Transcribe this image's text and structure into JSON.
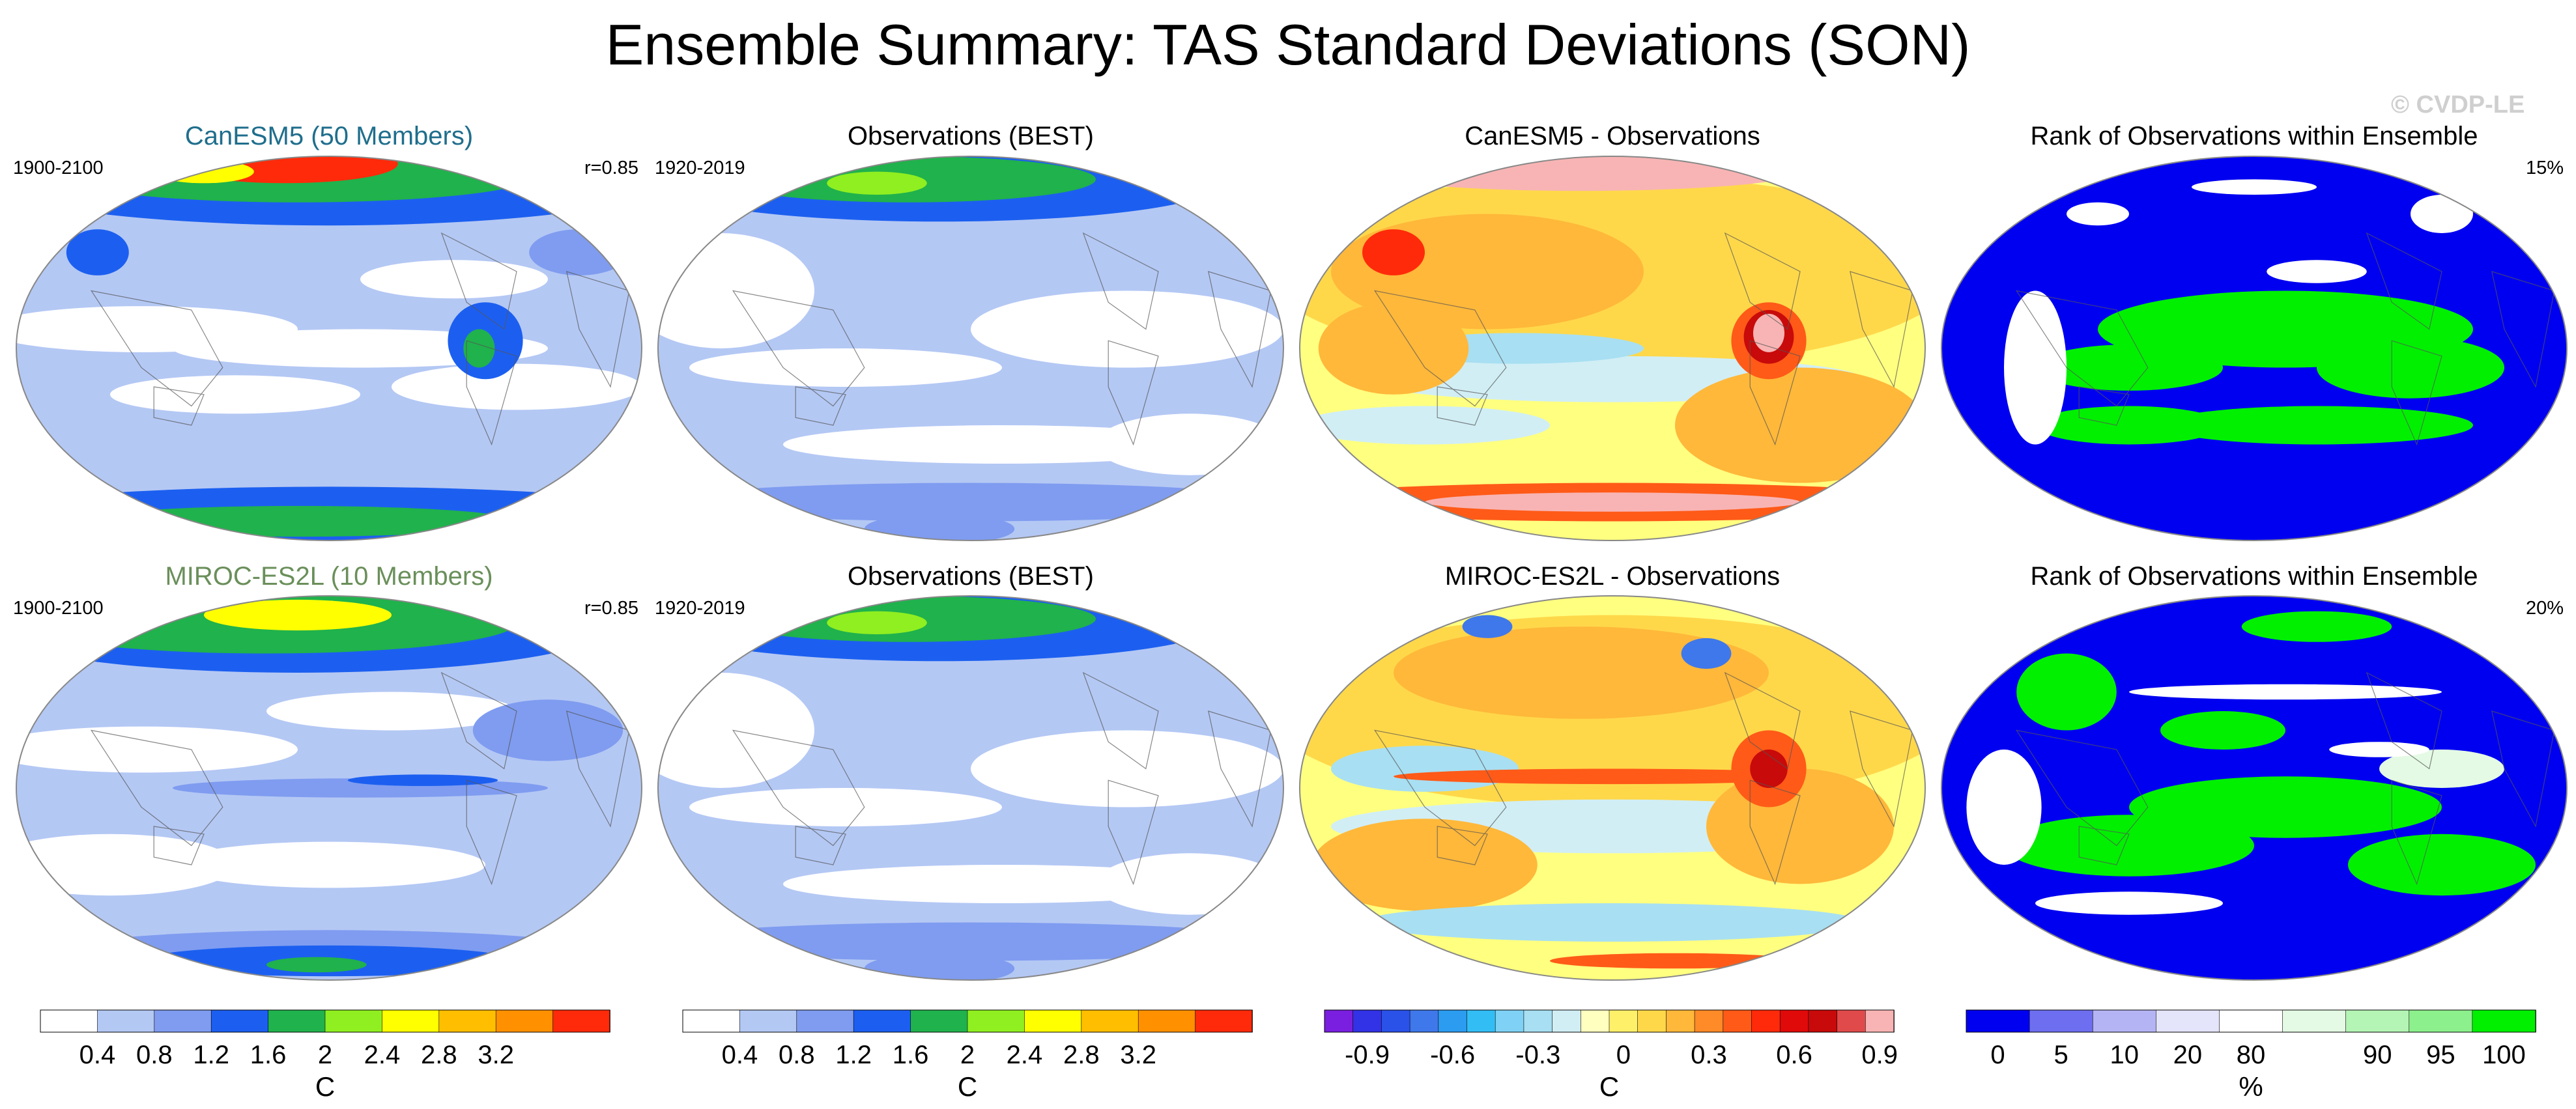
{
  "title": "Ensemble Summary: TAS Standard Deviations (SON)",
  "watermark": "© CVDP-LE",
  "chart_data": [
    {
      "type": "heatmap",
      "name": "panel-canesm5-mean",
      "title": "CanESM5 (50 Members)",
      "title_color": "#1f6e8c",
      "corner_left": "1900-2100",
      "corner_right": "r=0.85",
      "field": "TAS standard deviation",
      "units": "C",
      "regime": "model"
    },
    {
      "type": "heatmap",
      "name": "panel-obs-best-1",
      "title": "Observations (BEST)",
      "title_color": "#000000",
      "corner_left": "1920-2019",
      "corner_right": "",
      "field": "TAS standard deviation",
      "units": "C",
      "regime": "obs"
    },
    {
      "type": "heatmap",
      "name": "panel-canesm5-minus-obs",
      "title": "CanESM5 - Observations",
      "title_color": "#000000",
      "corner_left": "",
      "corner_right": "",
      "field": "difference",
      "units": "C",
      "regime": "diff1"
    },
    {
      "type": "heatmap",
      "name": "panel-rank-canesm5",
      "title": "Rank of Observations within Ensemble",
      "title_color": "#000000",
      "corner_left": "",
      "corner_right": "15%",
      "field": "rank",
      "units": "%",
      "regime": "rank1"
    },
    {
      "type": "heatmap",
      "name": "panel-miroc-mean",
      "title": "MIROC-ES2L (10 Members)",
      "title_color": "#6a8f5a",
      "corner_left": "1900-2100",
      "corner_right": "r=0.85",
      "field": "TAS standard deviation",
      "units": "C",
      "regime": "model2"
    },
    {
      "type": "heatmap",
      "name": "panel-obs-best-2",
      "title": "Observations (BEST)",
      "title_color": "#000000",
      "corner_left": "1920-2019",
      "corner_right": "",
      "field": "TAS standard deviation",
      "units": "C",
      "regime": "obs"
    },
    {
      "type": "heatmap",
      "name": "panel-miroc-minus-obs",
      "title": "MIROC-ES2L - Observations",
      "title_color": "#000000",
      "corner_left": "",
      "corner_right": "",
      "field": "difference",
      "units": "C",
      "regime": "diff2"
    },
    {
      "type": "heatmap",
      "name": "panel-rank-miroc",
      "title": "Rank of Observations within Ensemble",
      "title_color": "#000000",
      "corner_left": "",
      "corner_right": "20%",
      "field": "rank",
      "units": "%",
      "regime": "rank2"
    }
  ],
  "colorbars": [
    {
      "name": "colorbar-std-1",
      "unit": "C",
      "colors": [
        "#ffffff",
        "#b4c8f4",
        "#7f9cf0",
        "#1c5ff0",
        "#20b24c",
        "#90ef20",
        "#ffff00",
        "#ffbe00",
        "#ff9000",
        "#ff2a0a"
      ],
      "tick_labels": [
        "0.4",
        "0.8",
        "1.2",
        "1.6",
        "2",
        "2.4",
        "2.8",
        "3.2"
      ]
    },
    {
      "name": "colorbar-std-2",
      "unit": "C",
      "colors": [
        "#ffffff",
        "#b4c8f4",
        "#7f9cf0",
        "#1c5ff0",
        "#20b24c",
        "#90ef20",
        "#ffff00",
        "#ffbe00",
        "#ff9000",
        "#ff2a0a"
      ],
      "tick_labels": [
        "0.4",
        "0.8",
        "1.2",
        "1.6",
        "2",
        "2.4",
        "2.8",
        "3.2"
      ]
    },
    {
      "name": "colorbar-diff",
      "unit": "C",
      "colors": [
        "#7a1fe0",
        "#3232e6",
        "#2a52e8",
        "#3f78ea",
        "#2b9cf0",
        "#32bdf5",
        "#7fd2f5",
        "#a8dff2",
        "#d1eef5",
        "#ffffc0",
        "#fff06a",
        "#ffd84a",
        "#ffb83a",
        "#ff8a28",
        "#ff5a18",
        "#ff2a0a",
        "#e00a0a",
        "#c80a0a",
        "#e04a4a",
        "#f8b4b4"
      ],
      "tick_labels": [
        "-0.9",
        "-0.6",
        "-0.3",
        "0",
        "0.3",
        "0.6",
        "0.9"
      ]
    },
    {
      "name": "colorbar-rank",
      "unit": "%",
      "colors": [
        "#0000f0",
        "#6e6ef0",
        "#b4b4f4",
        "#e4e4fa",
        "#ffffff",
        "#e4fae4",
        "#b4f4b4",
        "#8cf08c",
        "#00f000"
      ],
      "tick_labels": [
        "0",
        "5",
        "10",
        "20",
        "80",
        "90",
        "95",
        "100"
      ]
    }
  ]
}
